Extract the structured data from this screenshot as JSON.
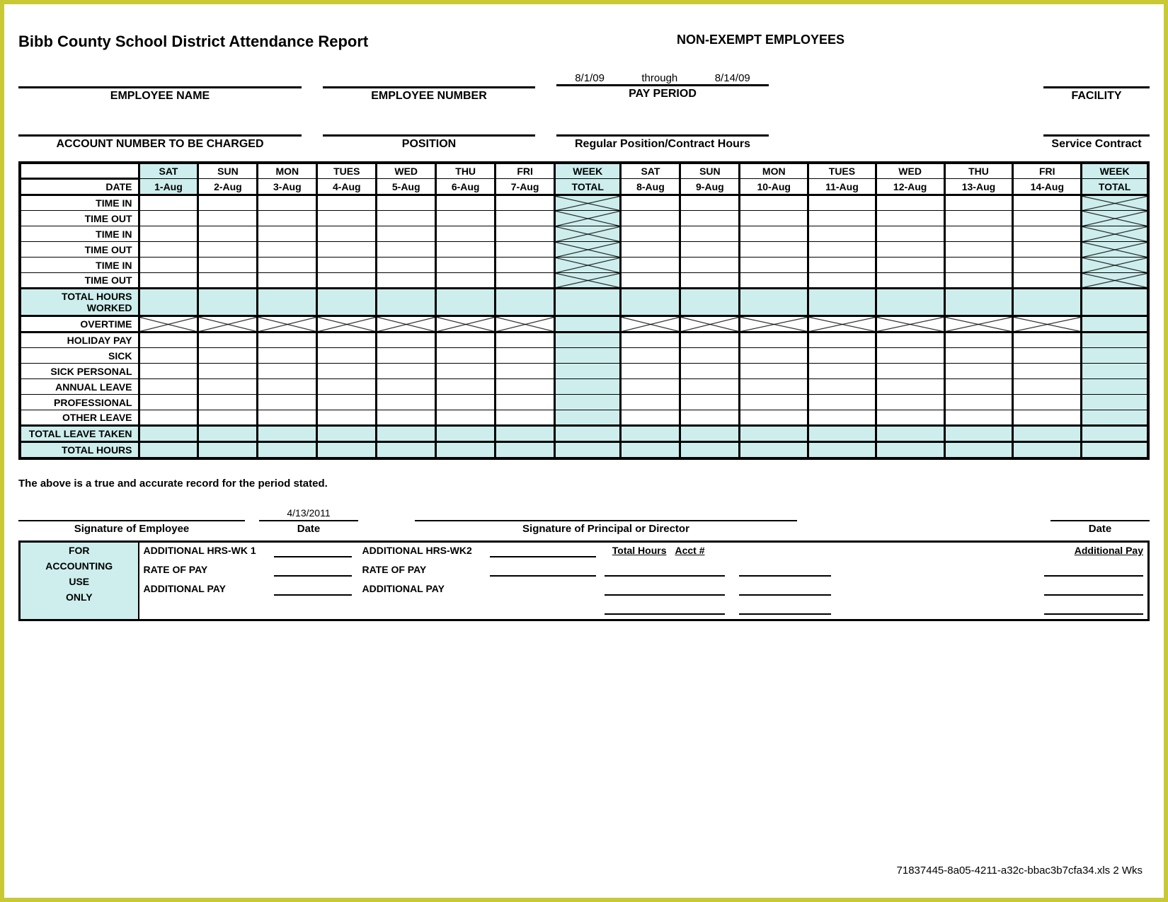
{
  "title": "Bibb County School District Attendance Report",
  "subtitle": "NON-EXEMPT EMPLOYEES",
  "pay_period": {
    "start": "8/1/09",
    "through_label": "through",
    "end": "8/14/09",
    "label": "PAY PERIOD"
  },
  "info_row1": {
    "employee_name": "EMPLOYEE NAME",
    "employee_number": "EMPLOYEE NUMBER",
    "facility": "FACILITY"
  },
  "info_row2": {
    "account": "ACCOUNT NUMBER TO BE CHARGED",
    "position": "POSITION",
    "reg_hours": "Regular Position/Contract Hours",
    "service": "Service Contract"
  },
  "table": {
    "date_label": "DATE",
    "days": [
      "SAT",
      "SUN",
      "MON",
      "TUES",
      "WED",
      "THU",
      "FRI"
    ],
    "week_total": "WEEK TOTAL",
    "dates_wk1": [
      "1-Aug",
      "2-Aug",
      "3-Aug",
      "4-Aug",
      "5-Aug",
      "6-Aug",
      "7-Aug"
    ],
    "dates_wk2": [
      "8-Aug",
      "9-Aug",
      "10-Aug",
      "11-Aug",
      "12-Aug",
      "13-Aug",
      "14-Aug"
    ],
    "rows_time": [
      "TIME IN",
      "TIME OUT",
      "TIME IN",
      "TIME OUT",
      "TIME IN",
      "TIME OUT"
    ],
    "total_hours_worked": "TOTAL HOURS WORKED",
    "overtime": "OVERTIME",
    "rows_leave": [
      "HOLIDAY PAY",
      "SICK",
      "SICK PERSONAL",
      "ANNUAL LEAVE",
      "PROFESSIONAL",
      "OTHER LEAVE"
    ],
    "total_leave": "TOTAL LEAVE TAKEN",
    "total_hours": "TOTAL HOURS",
    "teal_color": "#cdeeed"
  },
  "attestation": "The above is a true and accurate record for the period stated.",
  "sig_date": "4/13/2011",
  "signatures": {
    "employee": "Signature of Employee",
    "date": "Date",
    "principal": "Signature of Principal or Director"
  },
  "accounting": {
    "header": [
      "FOR",
      "ACCOUNTING",
      "USE",
      "ONLY"
    ],
    "add_hrs_wk1": "ADDITIONAL HRS-WK 1",
    "add_hrs_wk2": "ADDITIONAL HRS-WK2",
    "rate": "RATE OF PAY",
    "add_pay": "ADDITIONAL PAY",
    "total_hours": "Total Hours",
    "acct_num": "Acct #",
    "additional_pay_col": "Additional Pay"
  },
  "footer": "71837445-8a05-4211-a32c-bbac3b7cfa34.xls 2 Wks"
}
